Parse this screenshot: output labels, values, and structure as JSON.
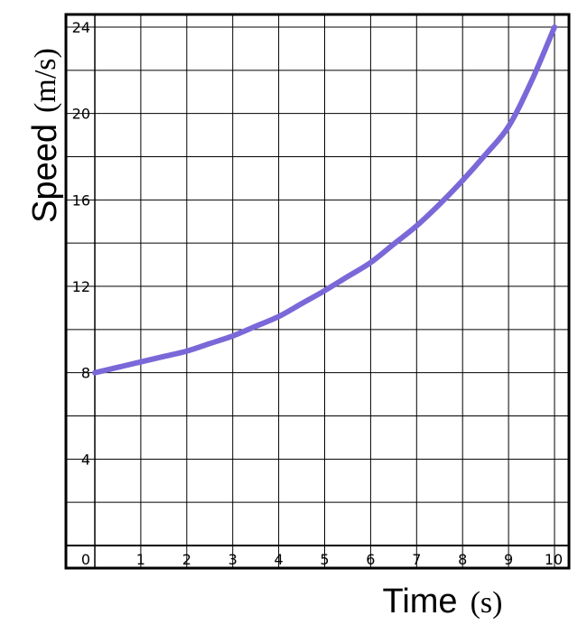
{
  "chart_data": {
    "type": "line",
    "title": "",
    "xlabel": {
      "word": "Time",
      "unit": "(s)"
    },
    "ylabel": {
      "word": "Speed",
      "unit": "(m/s)"
    },
    "xlim": [
      0,
      10
    ],
    "ylim": [
      0,
      24
    ],
    "x_ticks": [
      "0",
      "1",
      "2",
      "3",
      "4",
      "5",
      "6",
      "7",
      "8",
      "9",
      "10"
    ],
    "y_ticks": [
      "4",
      "8",
      "12",
      "16",
      "20",
      "24"
    ],
    "grid": true,
    "line_color": "#7b68d8",
    "series": [
      {
        "x": [
          0,
          0.5,
          1,
          1.5,
          2,
          2.5,
          3,
          3.5,
          4,
          4.5,
          5,
          5.5,
          6,
          6.5,
          7,
          7.5,
          8,
          8.5,
          9,
          9.5,
          10
        ],
        "values": [
          8.0,
          8.25,
          8.5,
          8.75,
          9.0,
          9.35,
          9.7,
          10.15,
          10.6,
          11.2,
          11.8,
          12.45,
          13.1,
          13.95,
          14.8,
          15.8,
          16.9,
          18.1,
          19.4,
          21.5,
          24.0
        ]
      }
    ]
  }
}
